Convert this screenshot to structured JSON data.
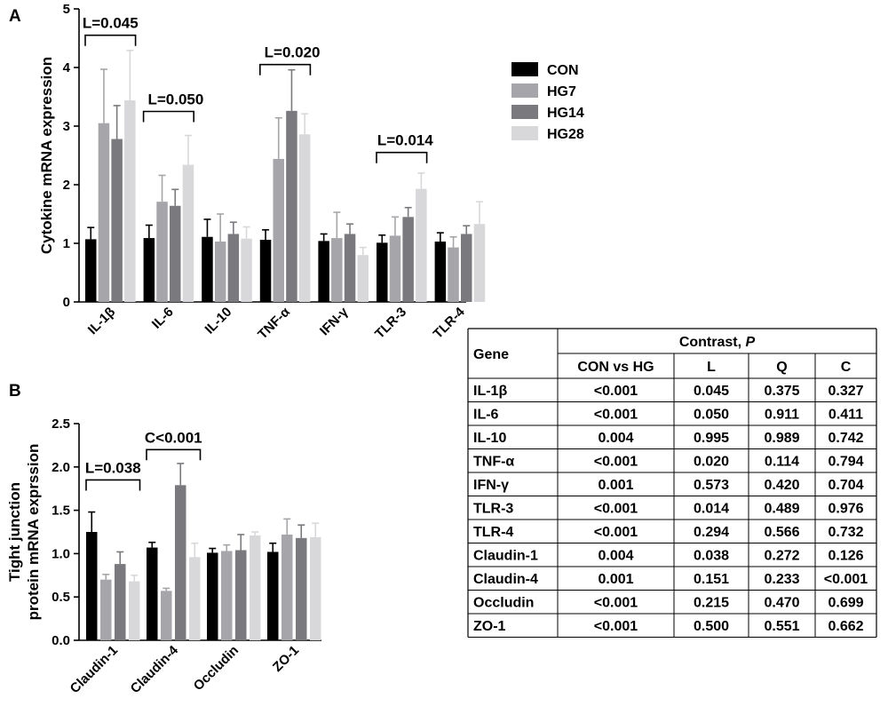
{
  "chart_data": [
    {
      "type": "bar",
      "panel": "A",
      "ylabel": "Cytokine mRNA expression",
      "xlabel": "",
      "ylim": [
        0,
        5
      ],
      "yticks": [
        0,
        1,
        2,
        3,
        4,
        5
      ],
      "ytick_labels": [
        "0",
        "1",
        "2",
        "3",
        "4",
        "5"
      ],
      "categories": [
        "IL-1β",
        "IL-6",
        "IL-10",
        "TNF-α",
        "IFN-γ",
        "TLR-3",
        "TLR-4"
      ],
      "series": [
        {
          "name": "CON",
          "color": "#000000",
          "values": [
            1.07,
            1.09,
            1.11,
            1.06,
            1.04,
            1.01,
            1.03
          ],
          "errors": [
            0.2,
            0.22,
            0.3,
            0.17,
            0.12,
            0.13,
            0.15
          ]
        },
        {
          "name": "HG7",
          "color": "#a6a6aa",
          "values": [
            3.05,
            1.71,
            1.03,
            2.44,
            1.09,
            1.13,
            0.93
          ],
          "errors": [
            0.92,
            0.45,
            0.47,
            0.7,
            0.44,
            0.32,
            0.18
          ]
        },
        {
          "name": "HG14",
          "color": "#7a7a7e",
          "values": [
            2.78,
            1.64,
            1.16,
            3.26,
            1.16,
            1.45,
            1.16
          ],
          "errors": [
            0.57,
            0.28,
            0.2,
            0.7,
            0.17,
            0.16,
            0.14
          ]
        },
        {
          "name": "HG28",
          "color": "#d8d8db",
          "values": [
            3.44,
            2.34,
            1.08,
            2.86,
            0.8,
            1.93,
            1.33
          ],
          "errors": [
            0.85,
            0.5,
            0.2,
            0.35,
            0.13,
            0.27,
            0.38
          ]
        }
      ],
      "annotations": [
        {
          "text": "L=0.045",
          "from_category": 0,
          "to_category": 0,
          "y": 4.55
        },
        {
          "text": "L=0.050",
          "from_category": 1,
          "to_category": 1,
          "y": 3.25
        },
        {
          "text": "L=0.020",
          "from_category": 3,
          "to_category": 3,
          "y": 4.05
        },
        {
          "text": "L=0.014",
          "from_category": 5,
          "to_category": 5,
          "y": 2.55
        }
      ],
      "legend": {
        "position": "right",
        "entries": [
          "CON",
          "HG7",
          "HG14",
          "HG28"
        ]
      }
    },
    {
      "type": "bar",
      "panel": "B",
      "ylabel": "Tight junction protein mRNA exprssion",
      "xlabel": "",
      "ylim": [
        0,
        2.5
      ],
      "yticks": [
        0,
        0.5,
        1,
        1.5,
        2,
        2.5
      ],
      "ytick_labels": [
        "0.0",
        "0.5",
        "1.0",
        "1.5",
        "2.0",
        "2.5"
      ],
      "categories": [
        "Claudin-1",
        "Claudin-4",
        "Occludin",
        "ZO-1"
      ],
      "series": [
        {
          "name": "CON",
          "color": "#000000",
          "values": [
            1.25,
            1.07,
            1.01,
            1.02
          ],
          "errors": [
            0.23,
            0.06,
            0.05,
            0.1
          ]
        },
        {
          "name": "HG7",
          "color": "#a6a6aa",
          "values": [
            0.7,
            0.57,
            1.03,
            1.22
          ],
          "errors": [
            0.06,
            0.03,
            0.07,
            0.18
          ]
        },
        {
          "name": "HG14",
          "color": "#7a7a7e",
          "values": [
            0.88,
            1.79,
            1.04,
            1.18
          ],
          "errors": [
            0.14,
            0.25,
            0.18,
            0.15
          ]
        },
        {
          "name": "HG28",
          "color": "#d8d8db",
          "values": [
            0.68,
            0.96,
            1.21,
            1.19
          ],
          "errors": [
            0.07,
            0.16,
            0.04,
            0.16
          ]
        }
      ],
      "annotations": [
        {
          "text": "L=0.038",
          "from_category": 0,
          "to_category": 0,
          "y": 1.85
        },
        {
          "text": "C<0.001",
          "from_category": 1,
          "to_category": 1,
          "y": 2.2
        }
      ]
    }
  ],
  "table": {
    "header_gene": "Gene",
    "header_contrast": "Contrast, ",
    "header_contrast_p": "P",
    "columns": [
      "CON vs HG",
      "L",
      "Q",
      "C"
    ],
    "rows": [
      {
        "gene": "IL-1β",
        "values": [
          "<0.001",
          "0.045",
          "0.375",
          "0.327"
        ]
      },
      {
        "gene": "IL-6",
        "values": [
          "<0.001",
          "0.050",
          "0.911",
          "0.411"
        ]
      },
      {
        "gene": "IL-10",
        "values": [
          "0.004",
          "0.995",
          "0.989",
          "0.742"
        ]
      },
      {
        "gene": "TNF-α",
        "values": [
          "<0.001",
          "0.020",
          "0.114",
          "0.794"
        ]
      },
      {
        "gene": "IFN-γ",
        "values": [
          "0.001",
          "0.573",
          "0.420",
          "0.704"
        ]
      },
      {
        "gene": "TLR-3",
        "values": [
          "<0.001",
          "0.014",
          "0.489",
          "0.976"
        ]
      },
      {
        "gene": "TLR-4",
        "values": [
          "<0.001",
          "0.294",
          "0.566",
          "0.732"
        ]
      },
      {
        "gene": "Claudin-1",
        "values": [
          "0.004",
          "0.038",
          "0.272",
          "0.126"
        ]
      },
      {
        "gene": "Claudin-4",
        "values": [
          "0.001",
          "0.151",
          "0.233",
          "<0.001"
        ]
      },
      {
        "gene": "Occludin",
        "values": [
          "<0.001",
          "0.215",
          "0.470",
          "0.699"
        ]
      },
      {
        "gene": "ZO-1",
        "values": [
          "<0.001",
          "0.500",
          "0.551",
          "0.662"
        ]
      }
    ]
  }
}
